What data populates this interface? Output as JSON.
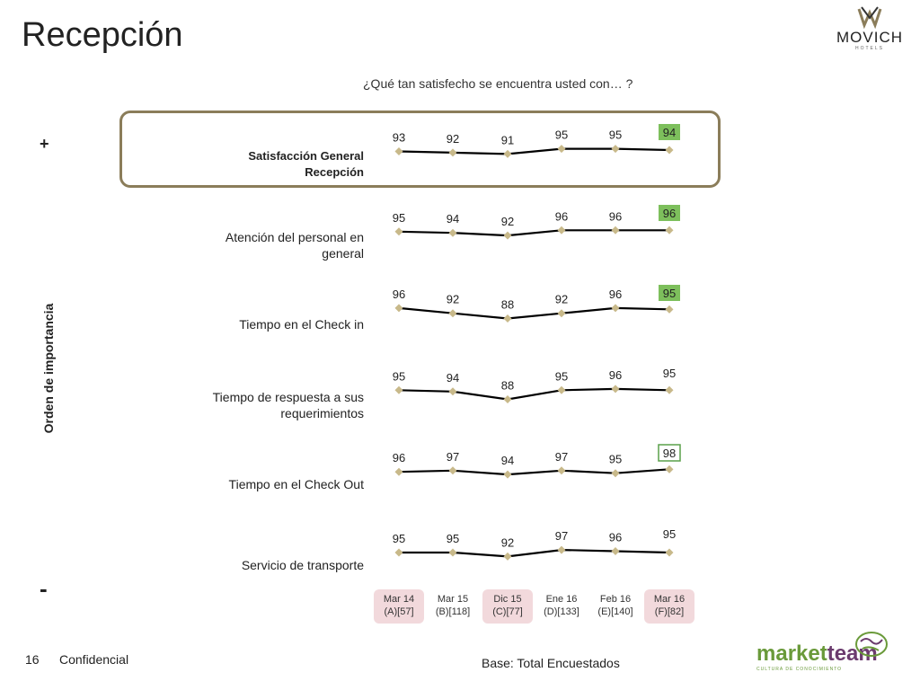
{
  "page": {
    "title": "Recepción",
    "page_number": "16",
    "confidential": "Confidencial",
    "base_note": "Base: Total Encuestados"
  },
  "logo": {
    "brand": "MOVICH",
    "sub": "HOTELS"
  },
  "marketteam": {
    "word_part1": "market",
    "word_part2": "team",
    "tagline": "CULTURA DE CONOCIMIENTO"
  },
  "colors": {
    "line": "#000000",
    "marker": "#c8b98a",
    "green_fill": "#7dbf5c",
    "green_border": "#5aa04a",
    "highlight_border": "#8b7d5a",
    "period_shade": "#f2d9dc"
  },
  "chart_data": {
    "type": "line",
    "title": "¿Qué tan satisfecho se encuentra usted con… ?",
    "ylabel": "Orden de importancia",
    "top_marker": "+",
    "bottom_marker": "-",
    "categories": [
      {
        "label": "Mar 14",
        "sub": "(A)[57]",
        "shaded": true
      },
      {
        "label": "Mar 15",
        "sub": "(B)[118]",
        "shaded": false
      },
      {
        "label": "Dic 15",
        "sub": "(C)[77]",
        "shaded": true
      },
      {
        "label": "Ene 16",
        "sub": "(D)[133]",
        "shaded": false
      },
      {
        "label": "Feb 16",
        "sub": "(E)[140]",
        "shaded": false
      },
      {
        "label": "Mar 16",
        "sub": "(F)[82]",
        "shaded": true
      }
    ],
    "series": [
      {
        "name_lines": [
          "Satisfacción General",
          "Recepción"
        ],
        "bold": true,
        "values": [
          93,
          92,
          91,
          95,
          95,
          94
        ],
        "last_highlight": "fill"
      },
      {
        "name_lines": [
          "Atención del personal en",
          "general"
        ],
        "bold": false,
        "values": [
          95,
          94,
          92,
          96,
          96,
          96
        ],
        "last_highlight": "fill"
      },
      {
        "name_lines": [
          "Tiempo en el Check in"
        ],
        "bold": false,
        "values": [
          96,
          92,
          88,
          92,
          96,
          95
        ],
        "last_highlight": "fill"
      },
      {
        "name_lines": [
          "Tiempo de respuesta a sus",
          "requerimientos"
        ],
        "bold": false,
        "values": [
          95,
          94,
          88,
          95,
          96,
          95
        ],
        "last_highlight": "none"
      },
      {
        "name_lines": [
          "Tiempo en el Check Out"
        ],
        "bold": false,
        "values": [
          96,
          97,
          94,
          97,
          95,
          98
        ],
        "last_highlight": "outline"
      },
      {
        "name_lines": [
          "Servicio de transporte"
        ],
        "bold": false,
        "values": [
          95,
          95,
          92,
          97,
          96,
          95
        ],
        "last_highlight": "none"
      }
    ]
  }
}
